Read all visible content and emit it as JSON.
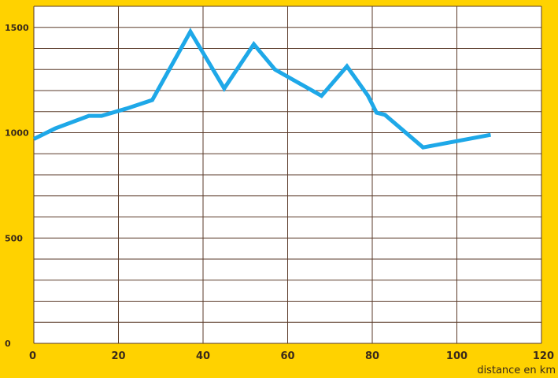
{
  "chart_data": {
    "type": "line",
    "xlabel": "distance en km",
    "ylabel": "",
    "title": "",
    "xlim": [
      0,
      120
    ],
    "ylim": [
      0,
      1600
    ],
    "x_ticks": [
      0,
      20,
      40,
      60,
      80,
      100,
      120
    ],
    "y_ticks": [
      0,
      500,
      1000,
      1500
    ],
    "grid": true,
    "colors": {
      "background": "#FFD200",
      "plot_area": "#FFFFFF",
      "grid": "#5A3A28",
      "line": "#1EA8E8",
      "text": "#3A2A1A"
    },
    "series": [
      {
        "x": [
          0,
          5,
          13,
          16,
          22,
          28,
          37,
          45,
          52,
          57,
          68,
          74,
          79,
          81,
          83,
          92,
          100,
          108
        ],
        "y": [
          970,
          1020,
          1080,
          1080,
          1115,
          1155,
          1480,
          1210,
          1420,
          1300,
          1175,
          1315,
          1175,
          1095,
          1085,
          930,
          960,
          990
        ]
      }
    ]
  }
}
